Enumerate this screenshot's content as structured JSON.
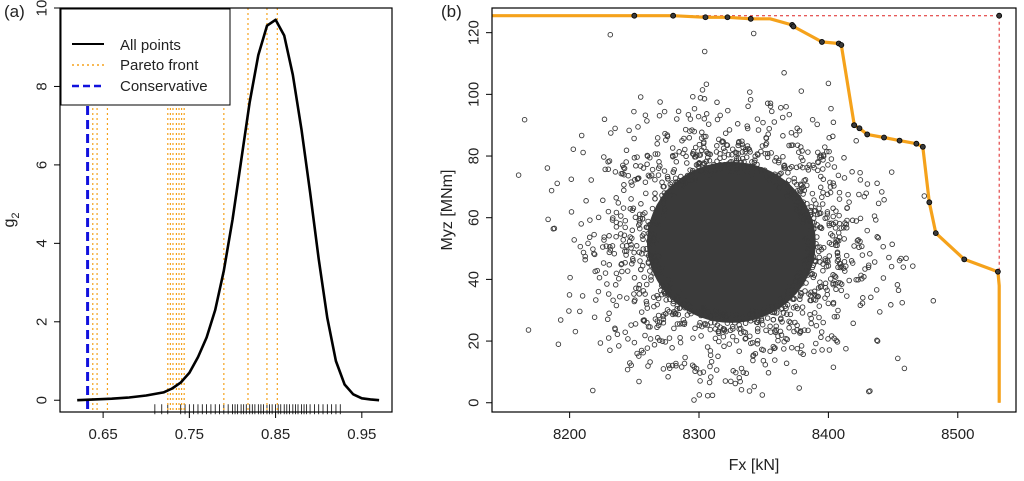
{
  "chart_data": [
    {
      "panel": "(a)",
      "type": "line",
      "title": "",
      "xlabel": "",
      "ylabel_main": "g",
      "ylabel_sub": "2",
      "xlim": [
        0.6,
        0.985
      ],
      "ylim": [
        -0.3,
        10
      ],
      "xticks": [
        0.65,
        0.75,
        0.85,
        0.95
      ],
      "xtick_labels": [
        "0.65",
        "0.75",
        "0.85",
        "0.95"
      ],
      "yticks": [
        0,
        2,
        4,
        6,
        8,
        10
      ],
      "ytick_labels": [
        "0",
        "2",
        "4",
        "6",
        "8",
        "10"
      ],
      "legend": {
        "position": "top-left",
        "entries": [
          {
            "label": "All points",
            "style": "solid",
            "color": "#000000"
          },
          {
            "label": "Pareto front",
            "style": "dotted",
            "color": "#F5A21B"
          },
          {
            "label": "Conservative",
            "style": "dashed",
            "color": "#1111DD"
          }
        ]
      },
      "series": [
        {
          "name": "All points",
          "color": "#000000",
          "x": [
            0.62,
            0.64,
            0.66,
            0.68,
            0.7,
            0.72,
            0.73,
            0.74,
            0.75,
            0.76,
            0.77,
            0.78,
            0.79,
            0.8,
            0.81,
            0.82,
            0.83,
            0.84,
            0.85,
            0.86,
            0.87,
            0.88,
            0.89,
            0.9,
            0.91,
            0.92,
            0.93,
            0.94,
            0.95,
            0.96,
            0.97
          ],
          "y": [
            0.0,
            0.02,
            0.04,
            0.07,
            0.12,
            0.2,
            0.3,
            0.45,
            0.7,
            1.1,
            1.6,
            2.3,
            3.3,
            4.6,
            6.1,
            7.6,
            8.8,
            9.55,
            9.7,
            9.3,
            8.3,
            6.9,
            5.3,
            3.6,
            2.1,
            1.0,
            0.4,
            0.15,
            0.05,
            0.02,
            0.0
          ]
        }
      ],
      "pareto_lines": [
        0.638,
        0.643,
        0.655,
        0.725,
        0.728,
        0.731,
        0.735,
        0.738,
        0.741,
        0.744,
        0.79,
        0.818,
        0.84,
        0.852
      ],
      "conservative_line": 0.632,
      "rug": [
        0.71,
        0.718,
        0.725,
        0.74,
        0.745,
        0.75,
        0.755,
        0.76,
        0.765,
        0.77,
        0.775,
        0.78,
        0.785,
        0.79,
        0.795,
        0.8,
        0.803,
        0.806,
        0.81,
        0.813,
        0.816,
        0.82,
        0.823,
        0.826,
        0.83,
        0.833,
        0.836,
        0.84,
        0.843,
        0.846,
        0.85,
        0.853,
        0.856,
        0.86,
        0.863,
        0.866,
        0.87,
        0.873,
        0.876,
        0.88,
        0.883,
        0.886,
        0.89,
        0.895,
        0.9,
        0.905,
        0.91,
        0.915,
        0.92,
        0.925
      ]
    },
    {
      "panel": "(b)",
      "type": "scatter",
      "title": "",
      "xlabel": "Fx [kN]",
      "ylabel": "Myz [MNm]",
      "xlim": [
        8140,
        8545
      ],
      "ylim": [
        -3,
        128
      ],
      "xticks": [
        8200,
        8300,
        8400,
        8500
      ],
      "xtick_labels": [
        "8200",
        "8300",
        "8400",
        "8500"
      ],
      "yticks": [
        0,
        20,
        40,
        60,
        80,
        100,
        120
      ],
      "ytick_labels": [
        "0",
        "20",
        "40",
        "60",
        "80",
        "100",
        "120"
      ],
      "cloud": {
        "name": "All points",
        "count": 20000,
        "center": [
          8325,
          52
        ],
        "spread": [
          45,
          18
        ],
        "color": "#3a3a3a"
      },
      "pareto_front": {
        "name": "Pareto front",
        "color": "#F5A21B",
        "x": [
          8140,
          8250,
          8280,
          8305,
          8322,
          8340,
          8355,
          8372,
          8373,
          8395,
          8408,
          8410,
          8415,
          8420,
          8424,
          8430,
          8443,
          8455,
          8468,
          8473,
          8478,
          8483,
          8505,
          8531,
          8532,
          8532
        ],
        "y": [
          125.5,
          125.5,
          125.5,
          125,
          125,
          124.5,
          124.5,
          122.5,
          122,
          117,
          116.5,
          116,
          103,
          90,
          89,
          87,
          86,
          85,
          84,
          83,
          65,
          55,
          46.5,
          42.5,
          38,
          0
        ]
      },
      "pareto_points": {
        "x": [
          8250,
          8280,
          8305,
          8322,
          8340,
          8372,
          8373,
          8395,
          8408,
          8410,
          8420,
          8424,
          8430,
          8443,
          8455,
          8468,
          8473,
          8478,
          8483,
          8505,
          8531,
          8532
        ],
        "y": [
          125.5,
          125.5,
          125,
          125,
          124.5,
          122.5,
          122,
          117,
          116.5,
          116,
          90,
          89,
          87,
          86,
          85,
          84,
          83,
          65,
          55,
          46.5,
          42.5,
          125.5
        ]
      },
      "conservative_point": {
        "x": 8532,
        "y": 125.5,
        "color": "#DD2222"
      }
    }
  ]
}
